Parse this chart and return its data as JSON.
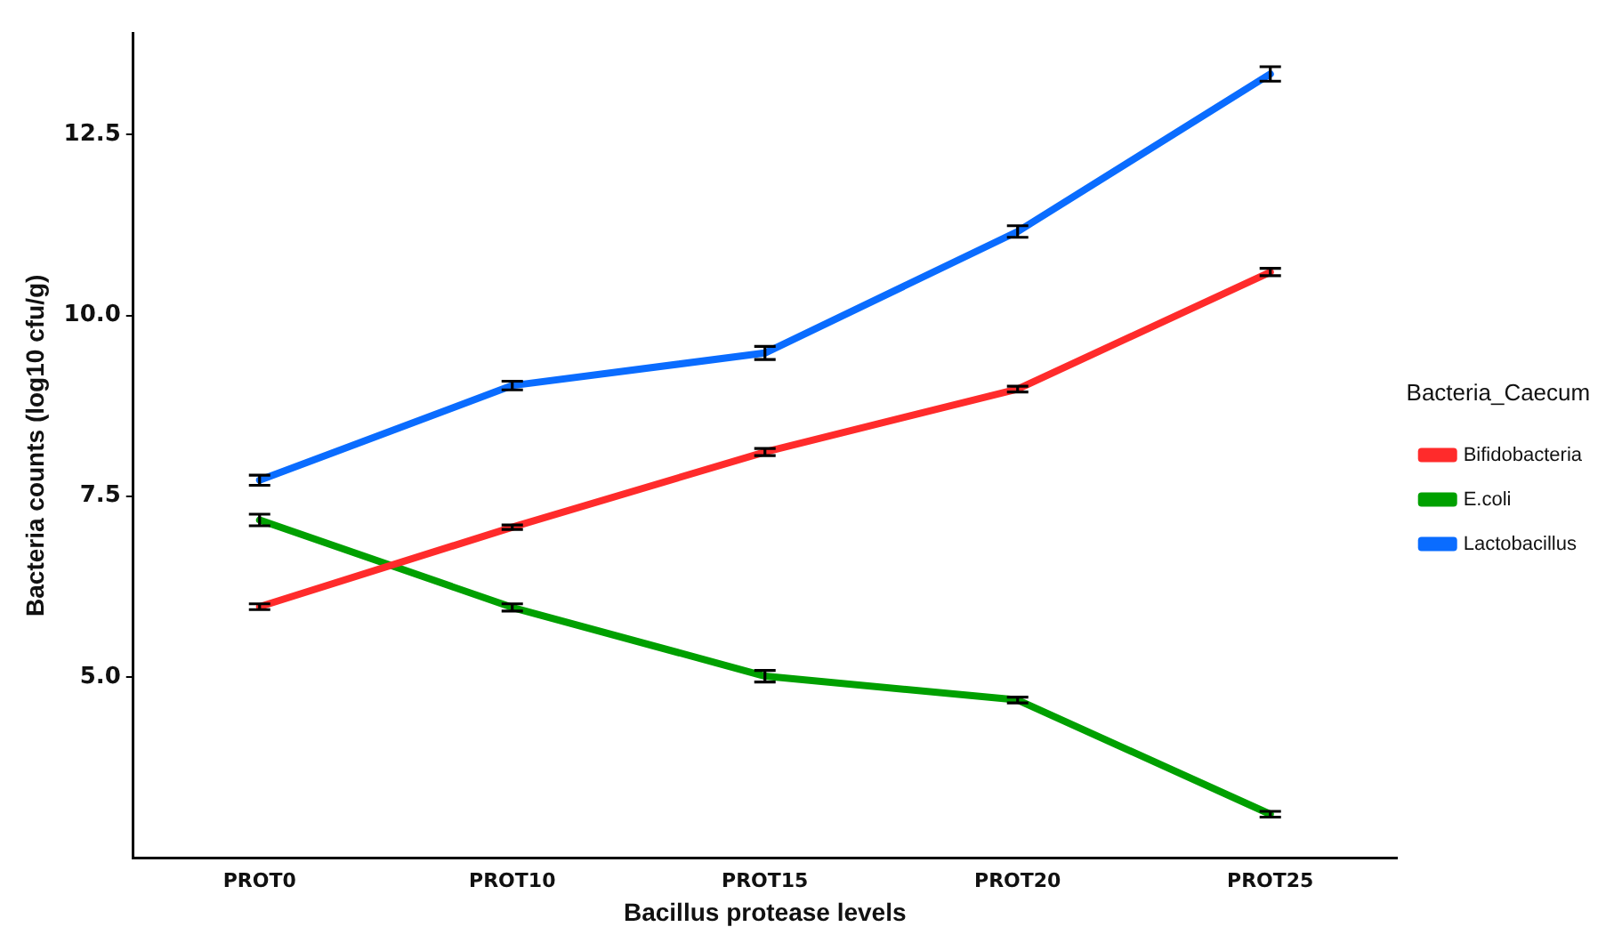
{
  "chart_data": {
    "type": "line",
    "xlabel": "Bacillus protease levels",
    "ylabel": "Bacteria counts (log10 cfu/g)",
    "legend_title": "Bacteria_Caecum",
    "categories": [
      "PROT0",
      "PROT10",
      "PROT15",
      "PROT20",
      "PROT25"
    ],
    "series": [
      {
        "name": "Bifidobacteria",
        "color": "#ff2b2b",
        "values": [
          5.97,
          7.07,
          8.11,
          8.98,
          10.6
        ],
        "errors": [
          0.04,
          0.03,
          0.05,
          0.04,
          0.05
        ]
      },
      {
        "name": "E.coli",
        "color": "#00a000",
        "values": [
          7.17,
          5.96,
          5.01,
          4.68,
          3.1
        ],
        "errors": [
          0.08,
          0.05,
          0.08,
          0.04,
          0.04
        ]
      },
      {
        "name": "Lactobacillus",
        "color": "#0a6cff",
        "values": [
          7.72,
          9.03,
          9.48,
          11.16,
          13.34
        ],
        "errors": [
          0.07,
          0.06,
          0.09,
          0.08,
          0.1
        ]
      }
    ],
    "ylim": [
      2.5,
      13.9
    ],
    "yticks": [
      {
        "value": 5,
        "label": "5.0"
      },
      7.5,
      {
        "value": 10,
        "label": "10.0"
      },
      12.5
    ],
    "grid": false,
    "legend": "right",
    "marker": "none",
    "line_style": "solid"
  }
}
